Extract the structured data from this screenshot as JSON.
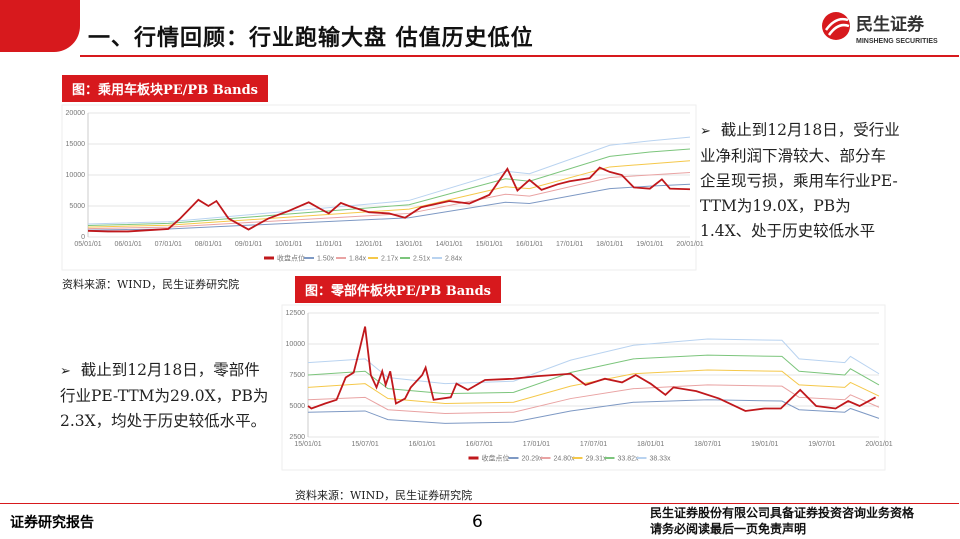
{
  "header": {
    "title": "一、行情回顾：行业跑输大盘 估值历史低位",
    "logo_cn": "民生证券",
    "logo_en": "MINSHENG SECURITIES"
  },
  "colors": {
    "brand": "#d7191d",
    "index": "#c0181c",
    "bands": [
      "#7e99c4",
      "#e9a3a3",
      "#f5c84a",
      "#7cc57c",
      "#b9d3f0"
    ]
  },
  "section1": {
    "label": "图：乘用车板块PE/PB Bands",
    "source": "资料来源：WIND，民生证券研究院",
    "bullet": "➢",
    "note": "截止到12月18日，受行业业净利润下滑较大、部分车企呈现亏损，乘用车行业PE-TTM为19.0X，PB为1.4X、处于历史较低水平"
  },
  "section2": {
    "label": "图：零部件板块PE/PB Bands",
    "source": "资料来源：WIND，民生证券研究院",
    "bullet": "➢",
    "note": "截止到12月18日，零部件行业PE-TTM为29.0X，PB为2.3X，均处于历史较低水平。"
  },
  "footer": {
    "left": "证券研究报告",
    "page": "6",
    "right1": "民生证券股份有限公司具备证券投资咨询业务资格",
    "right2": "请务必阅读最后一页免责声明"
  },
  "chart_data": [
    {
      "type": "line",
      "ylim": [
        0,
        20000
      ],
      "yticks": [
        0,
        5000,
        10000,
        15000,
        20000
      ],
      "xlim": [
        2005,
        2020
      ],
      "xticks": [
        "05/01/01",
        "06/01/01",
        "07/01/01",
        "08/01/01",
        "09/01/01",
        "10/01/01",
        "11/01/01",
        "12/01/01",
        "13/01/01",
        "14/01/01",
        "15/01/01",
        "16/01/01",
        "17/01/01",
        "18/01/01",
        "19/01/01",
        "20/01/01"
      ],
      "grid": true,
      "legend": "bottom",
      "index": {
        "name": "收盘点位",
        "points": [
          [
            2005,
            1000
          ],
          [
            2005.5,
            900
          ],
          [
            2006,
            900
          ],
          [
            2006.5,
            1100
          ],
          [
            2007,
            1300
          ],
          [
            2007.3,
            3000
          ],
          [
            2007.75,
            6000
          ],
          [
            2008,
            5000
          ],
          [
            2008.2,
            5800
          ],
          [
            2008.5,
            3000
          ],
          [
            2009,
            1200
          ],
          [
            2009.5,
            3000
          ],
          [
            2010,
            4200
          ],
          [
            2010.5,
            5600
          ],
          [
            2010.8,
            4500
          ],
          [
            2011,
            3800
          ],
          [
            2011.3,
            5500
          ],
          [
            2011.5,
            5000
          ],
          [
            2012,
            4000
          ],
          [
            2012.5,
            3800
          ],
          [
            2012.9,
            3100
          ],
          [
            2013.3,
            4800
          ],
          [
            2014,
            5800
          ],
          [
            2014.5,
            5400
          ],
          [
            2015,
            6800
          ],
          [
            2015.45,
            11000
          ],
          [
            2015.7,
            7500
          ],
          [
            2016,
            9200
          ],
          [
            2016.3,
            7600
          ],
          [
            2016.7,
            8500
          ],
          [
            2017,
            9000
          ],
          [
            2017.5,
            9500
          ],
          [
            2017.75,
            11200
          ],
          [
            2018,
            10500
          ],
          [
            2018.3,
            10000
          ],
          [
            2018.6,
            8000
          ],
          [
            2019,
            7800
          ],
          [
            2019.3,
            9300
          ],
          [
            2019.5,
            7800
          ],
          [
            2020,
            7700
          ]
        ]
      },
      "band_x": [
        2005,
        2007,
        2010,
        2013,
        2015.4,
        2016,
        2018,
        2019,
        2020
      ],
      "series": [
        {
          "name": "1.50x",
          "values": [
            1100,
            1300,
            2200,
            3100,
            5600,
            5400,
            7800,
            8200,
            8500
          ]
        },
        {
          "name": "1.84x",
          "values": [
            1350,
            1600,
            2700,
            3800,
            6900,
            6600,
            9600,
            10000,
            10400
          ]
        },
        {
          "name": "2.17x",
          "values": [
            1600,
            1900,
            3200,
            4500,
            8100,
            7800,
            11300,
            11800,
            12300
          ]
        },
        {
          "name": "2.51x",
          "values": [
            1850,
            2200,
            3700,
            5200,
            9400,
            9000,
            13000,
            13700,
            14200
          ]
        },
        {
          "name": "2.84x",
          "values": [
            2100,
            2450,
            4150,
            5900,
            10600,
            10200,
            14800,
            15500,
            16100
          ]
        }
      ]
    },
    {
      "type": "line",
      "ylim": [
        2500,
        12500
      ],
      "yticks": [
        2500,
        5000,
        7500,
        10000,
        12500
      ],
      "xlim": [
        2015,
        2020
      ],
      "xticks": [
        "15/01/01",
        "15/07/01",
        "16/01/01",
        "16/07/01",
        "17/01/01",
        "17/07/01",
        "18/01/01",
        "18/07/01",
        "19/01/01",
        "19/07/01",
        "20/01/01"
      ],
      "grid": true,
      "legend": "bottom",
      "index": {
        "name": "收盘点位",
        "points": [
          [
            2015,
            5000
          ],
          [
            2015.03,
            4800
          ],
          [
            2015.15,
            5200
          ],
          [
            2015.25,
            5500
          ],
          [
            2015.33,
            7300
          ],
          [
            2015.4,
            7700
          ],
          [
            2015.45,
            9500
          ],
          [
            2015.5,
            11400
          ],
          [
            2015.55,
            7500
          ],
          [
            2015.6,
            6500
          ],
          [
            2015.65,
            7800
          ],
          [
            2015.68,
            6700
          ],
          [
            2015.72,
            7800
          ],
          [
            2015.77,
            5200
          ],
          [
            2015.85,
            5600
          ],
          [
            2015.9,
            6500
          ],
          [
            2016,
            7500
          ],
          [
            2016.03,
            8100
          ],
          [
            2016.1,
            5500
          ],
          [
            2016.25,
            5700
          ],
          [
            2016.3,
            6800
          ],
          [
            2016.4,
            6300
          ],
          [
            2016.55,
            7100
          ],
          [
            2016.8,
            7200
          ],
          [
            2017,
            7400
          ],
          [
            2017.3,
            7600
          ],
          [
            2017.43,
            6700
          ],
          [
            2017.6,
            7200
          ],
          [
            2017.75,
            6900
          ],
          [
            2017.87,
            7500
          ],
          [
            2018,
            6800
          ],
          [
            2018.13,
            5900
          ],
          [
            2018.2,
            6500
          ],
          [
            2018.4,
            6200
          ],
          [
            2018.6,
            5600
          ],
          [
            2018.83,
            4600
          ],
          [
            2019,
            4800
          ],
          [
            2019.14,
            4800
          ],
          [
            2019.31,
            6300
          ],
          [
            2019.45,
            5000
          ],
          [
            2019.62,
            4800
          ],
          [
            2019.73,
            5400
          ],
          [
            2019.83,
            5000
          ],
          [
            2019.97,
            5700
          ]
        ]
      },
      "band_x": [
        2015,
        2015.5,
        2015.7,
        2016.2,
        2016.8,
        2017.3,
        2017.85,
        2018.5,
        2019.15,
        2019.3,
        2019.7,
        2019.75,
        2020
      ],
      "series": [
        {
          "name": "20.29x",
          "values": [
            4500,
            4600,
            3900,
            3600,
            3700,
            4600,
            5300,
            5500,
            5400,
            4700,
            4500,
            4800,
            4000
          ]
        },
        {
          "name": "24.80x",
          "values": [
            5500,
            5700,
            4700,
            4400,
            4500,
            5600,
            6400,
            6700,
            6600,
            5700,
            5500,
            5900,
            4900
          ]
        },
        {
          "name": "29.31x",
          "values": [
            6500,
            6800,
            5600,
            5200,
            5300,
            6600,
            7600,
            7900,
            7800,
            6700,
            6500,
            6900,
            5800
          ]
        },
        {
          "name": "33.82x",
          "values": [
            7500,
            7800,
            6400,
            6000,
            6100,
            7700,
            8800,
            9100,
            9000,
            7800,
            7500,
            8000,
            6700
          ]
        },
        {
          "name": "38.33x",
          "values": [
            8500,
            8800,
            7300,
            6800,
            7000,
            8700,
            9900,
            10400,
            10300,
            8800,
            8500,
            9000,
            7600
          ]
        }
      ]
    }
  ]
}
